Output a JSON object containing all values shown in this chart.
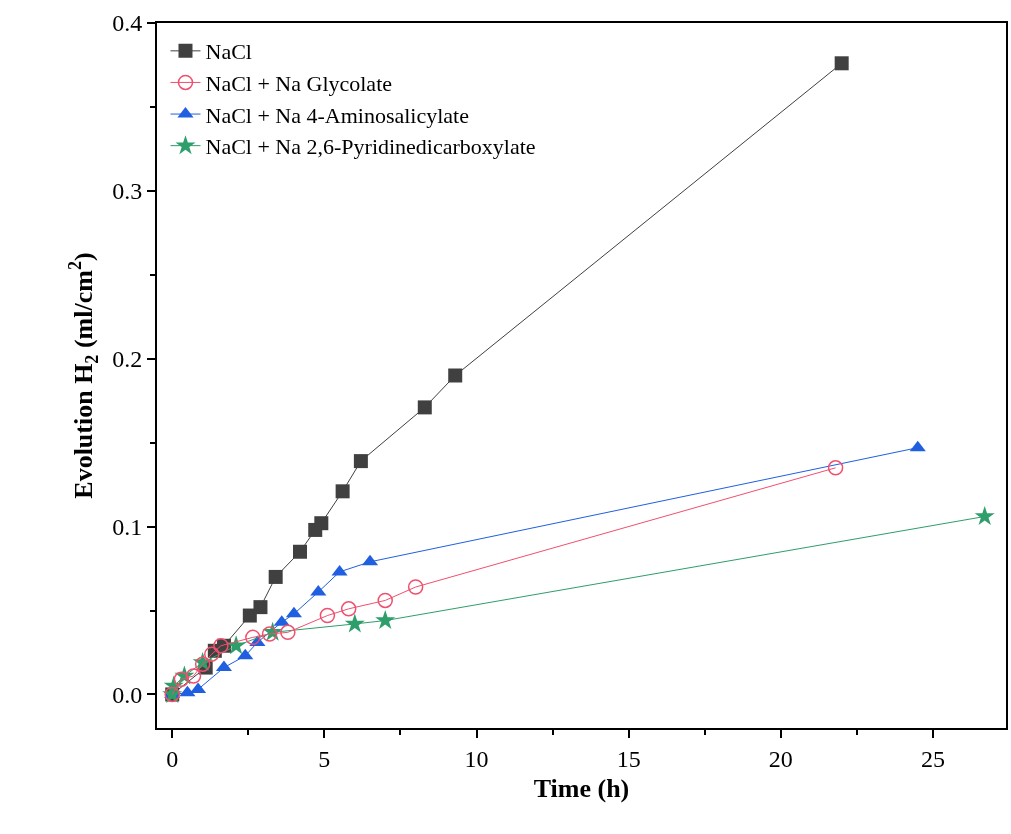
{
  "chart_data": {
    "type": "line",
    "xlabel": "Time (h)",
    "ylabel": "Evolution H$_{2}$ (ml/cm$^{2}$)",
    "xlim": [
      -0.5,
      27.4
    ],
    "ylim": [
      -0.02,
      0.4
    ],
    "xticks": [
      0,
      5,
      10,
      15,
      20,
      25
    ],
    "yticks": [
      {
        "value": 0,
        "label": "0.0"
      },
      0.1,
      0.2,
      0.3,
      0.4
    ],
    "legend": "top left",
    "series": [
      {
        "name": "NaCl",
        "color": "#404040",
        "marker": "square",
        "x": [
          0,
          1.1,
          1.4,
          1.7,
          2.55,
          2.9,
          3.4,
          4.2,
          4.7,
          4.9,
          5.6,
          6.2,
          8.3,
          9.3,
          22.0
        ],
        "values": [
          0,
          0.016,
          0.026,
          0.029,
          0.047,
          0.052,
          0.07,
          0.085,
          0.098,
          0.102,
          0.121,
          0.139,
          0.171,
          0.19,
          0.376
        ]
      },
      {
        "name": "NaCl + Na Glycolate",
        "color": "#f0506e",
        "marker": "circle-open",
        "x": [
          0,
          0.3,
          0.7,
          1.0,
          1.3,
          1.6,
          2.65,
          3.2,
          3.8,
          5.1,
          5.8,
          7.0,
          8.0,
          21.8
        ],
        "values": [
          0,
          0.009,
          0.011,
          0.018,
          0.024,
          0.029,
          0.034,
          0.036,
          0.037,
          0.047,
          0.051,
          0.056,
          0.064,
          0.135
        ]
      },
      {
        "name": "NaCl + Na 4-Aminosalicylate",
        "color": "#1f5fe0",
        "marker": "triangle",
        "x": [
          0,
          0.5,
          0.85,
          1.7,
          2.4,
          2.8,
          3.6,
          4.0,
          4.8,
          5.5,
          6.5,
          24.5
        ],
        "values": [
          0,
          0.001,
          0.003,
          0.016,
          0.023,
          0.031,
          0.043,
          0.048,
          0.061,
          0.073,
          0.079,
          0.147
        ]
      },
      {
        "name": "NaCl + Na 2,6-Pyridinedicarboxylate",
        "color": "#2e9e6a",
        "marker": "star",
        "x": [
          0,
          0.05,
          0.4,
          1.0,
          2.1,
          3.3,
          6.0,
          7.0,
          26.7
        ],
        "values": [
          0,
          0.005,
          0.011,
          0.019,
          0.029,
          0.037,
          0.042,
          0.044,
          0.106
        ]
      }
    ]
  }
}
